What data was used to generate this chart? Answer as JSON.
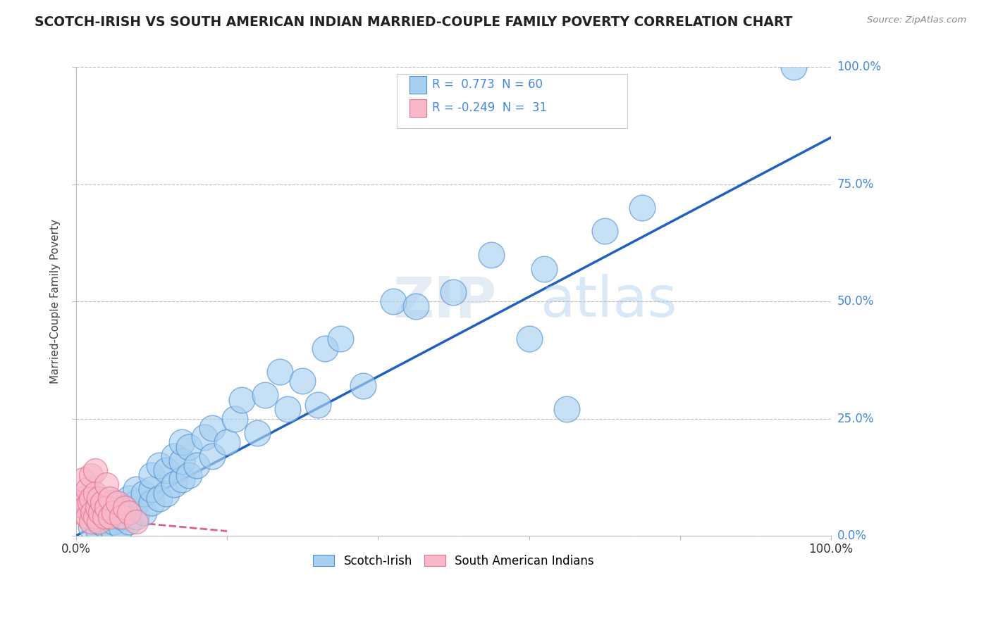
{
  "title": "SCOTCH-IRISH VS SOUTH AMERICAN INDIAN MARRIED-COUPLE FAMILY POVERTY CORRELATION CHART",
  "source": "Source: ZipAtlas.com",
  "ylabel": "Married-Couple Family Poverty",
  "yticklabels": [
    "0.0%",
    "25.0%",
    "50.0%",
    "75.0%",
    "100.0%"
  ],
  "ytick_positions": [
    0.0,
    0.25,
    0.5,
    0.75,
    1.0
  ],
  "xlim": [
    0,
    1.0
  ],
  "ylim": [
    0,
    1.0
  ],
  "watermark_zip": "ZIP",
  "watermark_atlas": "atlas",
  "blue_r": 0.773,
  "blue_n": 60,
  "pink_r": -0.249,
  "pink_n": 31,
  "blue_color": "#A8D0F0",
  "pink_color": "#F8B8C8",
  "blue_edge_color": "#5090D0",
  "pink_edge_color": "#E07090",
  "blue_line_color": "#2060C0",
  "pink_line_color": "#E06080",
  "grid_color": "#BBBBBB",
  "background_color": "#FFFFFF",
  "text_color": "#4488DD",
  "title_color": "#222222",
  "blue_line_x": [
    0.0,
    1.0
  ],
  "blue_line_y": [
    0.0,
    0.85
  ],
  "pink_line_x": [
    0.0,
    0.2
  ],
  "pink_line_y": [
    0.04,
    0.01
  ],
  "blue_x": [
    0.02,
    0.03,
    0.03,
    0.04,
    0.04,
    0.04,
    0.05,
    0.05,
    0.05,
    0.05,
    0.06,
    0.06,
    0.07,
    0.07,
    0.07,
    0.08,
    0.08,
    0.08,
    0.09,
    0.09,
    0.1,
    0.1,
    0.1,
    0.11,
    0.11,
    0.12,
    0.12,
    0.13,
    0.13,
    0.14,
    0.14,
    0.14,
    0.15,
    0.15,
    0.16,
    0.17,
    0.18,
    0.18,
    0.2,
    0.21,
    0.22,
    0.24,
    0.25,
    0.27,
    0.28,
    0.3,
    0.32,
    0.33,
    0.35,
    0.38,
    0.42,
    0.45,
    0.5,
    0.55,
    0.6,
    0.62,
    0.65,
    0.7,
    0.75,
    0.95
  ],
  "blue_y": [
    0.02,
    0.01,
    0.03,
    0.02,
    0.04,
    0.06,
    0.01,
    0.03,
    0.05,
    0.07,
    0.02,
    0.04,
    0.03,
    0.06,
    0.08,
    0.04,
    0.07,
    0.1,
    0.05,
    0.09,
    0.07,
    0.1,
    0.13,
    0.08,
    0.15,
    0.09,
    0.14,
    0.11,
    0.17,
    0.12,
    0.16,
    0.2,
    0.13,
    0.19,
    0.15,
    0.21,
    0.17,
    0.23,
    0.2,
    0.25,
    0.29,
    0.22,
    0.3,
    0.35,
    0.27,
    0.33,
    0.28,
    0.4,
    0.42,
    0.32,
    0.5,
    0.49,
    0.52,
    0.6,
    0.42,
    0.57,
    0.27,
    0.65,
    0.7,
    1.0
  ],
  "pink_x": [
    0.005,
    0.008,
    0.01,
    0.01,
    0.012,
    0.015,
    0.015,
    0.018,
    0.02,
    0.02,
    0.02,
    0.022,
    0.025,
    0.025,
    0.025,
    0.028,
    0.03,
    0.03,
    0.032,
    0.035,
    0.038,
    0.04,
    0.04,
    0.045,
    0.045,
    0.05,
    0.055,
    0.06,
    0.065,
    0.07,
    0.08
  ],
  "pink_y": [
    0.07,
    0.05,
    0.08,
    0.12,
    0.06,
    0.04,
    0.1,
    0.07,
    0.03,
    0.08,
    0.13,
    0.05,
    0.04,
    0.09,
    0.14,
    0.06,
    0.03,
    0.08,
    0.05,
    0.07,
    0.04,
    0.06,
    0.11,
    0.04,
    0.08,
    0.05,
    0.07,
    0.04,
    0.06,
    0.05,
    0.03
  ]
}
